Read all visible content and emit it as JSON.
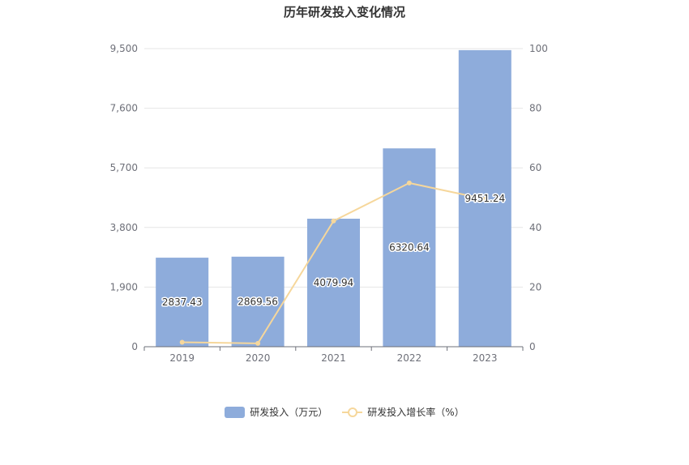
{
  "chart_data": {
    "type": "bar",
    "title": "历年研发投入变化情况",
    "categories": [
      "2019",
      "2020",
      "2021",
      "2022",
      "2023"
    ],
    "series": [
      {
        "name": "研发投入（万元）",
        "type": "bar",
        "axis": "left",
        "values": [
          2837.43,
          2869.56,
          4079.94,
          6320.64,
          9451.24
        ],
        "labels": [
          "2837.43",
          "2869.56",
          "4079.94",
          "6320.64",
          "9451.24"
        ],
        "color": "#8eacdb"
      },
      {
        "name": "研发投入增长率（%）",
        "type": "line",
        "axis": "right",
        "values": [
          1.5,
          1.13,
          42.18,
          54.92,
          49.53
        ],
        "color": "#f6d79b"
      }
    ],
    "y_left": {
      "ylim": [
        0,
        9500
      ],
      "ticks": [
        "0",
        "1,900",
        "3,800",
        "5,700",
        "7,600",
        "9,500"
      ]
    },
    "y_right": {
      "ylim": [
        0,
        100
      ],
      "ticks": [
        "0",
        "20",
        "40",
        "60",
        "80",
        "100"
      ]
    },
    "grid": true,
    "legend_position": "bottom"
  }
}
